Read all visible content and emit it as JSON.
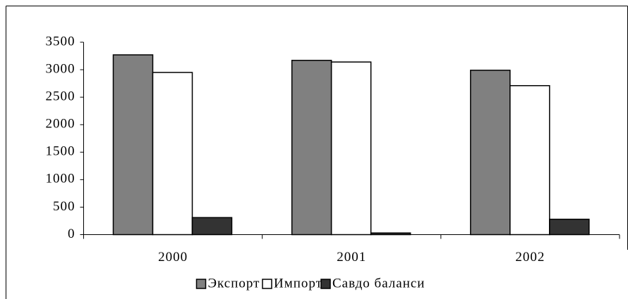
{
  "chart_data": {
    "type": "bar",
    "categories": [
      "2000",
      "2001",
      "2002"
    ],
    "series": [
      {
        "name": "Экспорт",
        "color": "#808080",
        "values": [
          3270,
          3170,
          2990
        ]
      },
      {
        "name": "Импорт",
        "color": "#ffffff",
        "values": [
          2950,
          3140,
          2710
        ]
      },
      {
        "name": "Савдо баланси",
        "color": "#333333",
        "values": [
          310,
          30,
          280
        ]
      }
    ],
    "ylim": [
      0,
      3500
    ],
    "yticks": [
      0,
      500,
      1000,
      1500,
      2000,
      2500,
      3000,
      3500
    ],
    "grid": false,
    "legend": "bottom"
  }
}
